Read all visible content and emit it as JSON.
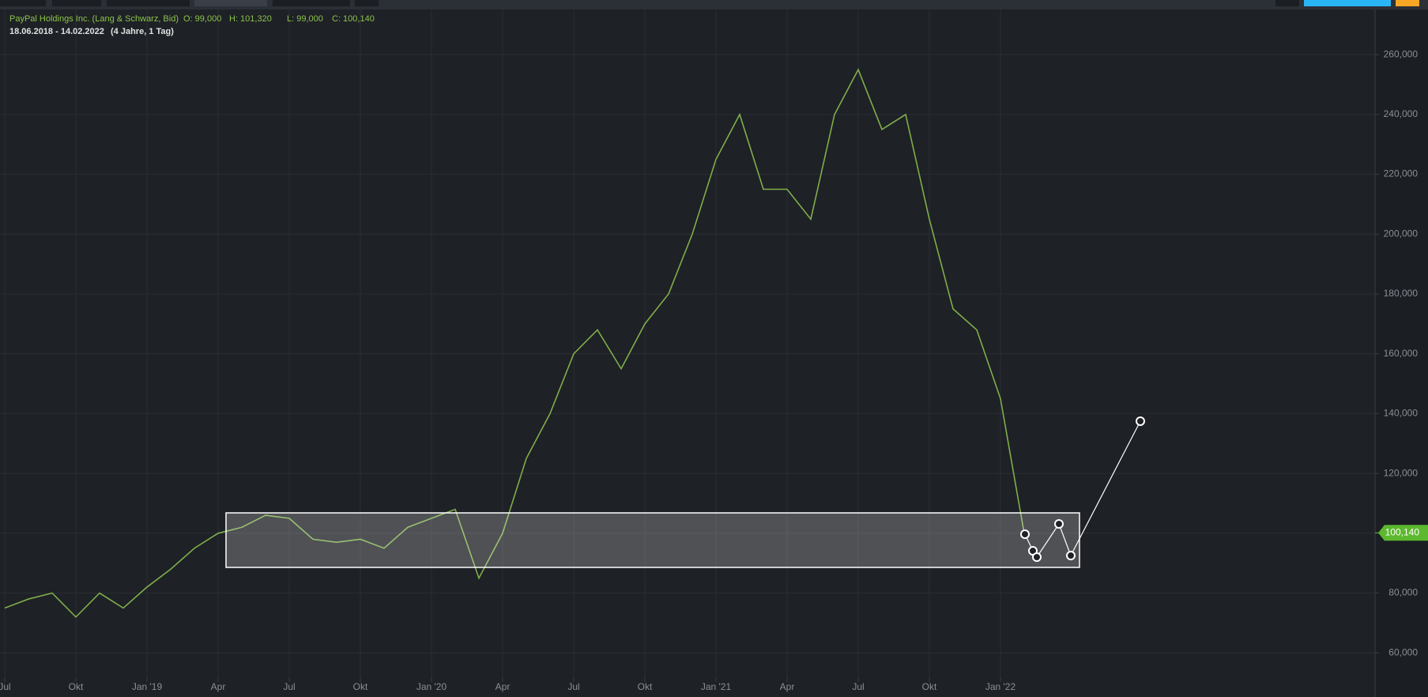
{
  "chart_data": {
    "type": "line",
    "title": "PayPal Holdings Inc. (Lang & Schwarz, Bid)",
    "ohlc": [
      "O: 99,000",
      "H: 101,320",
      "L: 99,000",
      "C: 100,140"
    ],
    "period": "18.06.2018 - 14.02.2022",
    "span": "(4 Jahre, 1 Tag)",
    "x": [
      "2018-07",
      "2018-08",
      "2018-09",
      "2018-10",
      "2018-11",
      "2018-12",
      "2019-01",
      "2019-02",
      "2019-03",
      "2019-04",
      "2019-05",
      "2019-06",
      "2019-07",
      "2019-08",
      "2019-09",
      "2019-10",
      "2019-11",
      "2019-12",
      "2020-01",
      "2020-02",
      "2020-03",
      "2020-04",
      "2020-05",
      "2020-06",
      "2020-07",
      "2020-08",
      "2020-09",
      "2020-10",
      "2020-11",
      "2020-12",
      "2021-01",
      "2021-02",
      "2021-03",
      "2021-04",
      "2021-05",
      "2021-06",
      "2021-07",
      "2021-08",
      "2021-09",
      "2021-10",
      "2021-11",
      "2021-12",
      "2022-01",
      "2022-02"
    ],
    "series": [
      {
        "color": "#7fae4a",
        "values": [
          75,
          78,
          80,
          72,
          80,
          75,
          82,
          88,
          95,
          100,
          102,
          106,
          105,
          98,
          97,
          98,
          95,
          102,
          105,
          108,
          85,
          100,
          125,
          140,
          160,
          168,
          155,
          170,
          180,
          200,
          225,
          240,
          215,
          215,
          205,
          240,
          255,
          235,
          240,
          205,
          175,
          168,
          145,
          100
        ]
      }
    ],
    "last_price": {
      "value": 100.14,
      "label": "100,140"
    },
    "ylim": [
      51.6,
      275.1
    ],
    "yticks": [
      {
        "value": 60,
        "label": "60,000"
      },
      {
        "value": 80,
        "label": "80,000"
      },
      {
        "value": 100,
        "label": "100,000"
      },
      {
        "value": 120,
        "label": "120,000"
      },
      {
        "value": 140,
        "label": "140,000"
      },
      {
        "value": 160,
        "label": "160,000"
      },
      {
        "value": 180,
        "label": "180,000"
      },
      {
        "value": 200,
        "label": "200,000"
      },
      {
        "value": 220,
        "label": "220,000"
      },
      {
        "value": 240,
        "label": "240,000"
      },
      {
        "value": 260,
        "label": "260,000"
      }
    ],
    "xticks": [
      {
        "value": "2018-07",
        "label": "Jul"
      },
      {
        "value": "2018-10",
        "label": "Okt"
      },
      {
        "value": "2019-01",
        "label": "Jan '19"
      },
      {
        "value": "2019-04",
        "label": "Apr"
      },
      {
        "value": "2019-07",
        "label": "Jul"
      },
      {
        "value": "2019-10",
        "label": "Okt"
      },
      {
        "value": "2020-01",
        "label": "Jan '20"
      },
      {
        "value": "2020-04",
        "label": "Apr"
      },
      {
        "value": "2020-07",
        "label": "Jul"
      },
      {
        "value": "2020-10",
        "label": "Okt"
      },
      {
        "value": "2021-01",
        "label": "Jan '21"
      },
      {
        "value": "2021-04",
        "label": "Apr"
      },
      {
        "value": "2021-07",
        "label": "Jul"
      },
      {
        "value": "2021-10",
        "label": "Okt"
      },
      {
        "value": "2022-01",
        "label": "Jan '22"
      }
    ],
    "grid": true
  }
}
